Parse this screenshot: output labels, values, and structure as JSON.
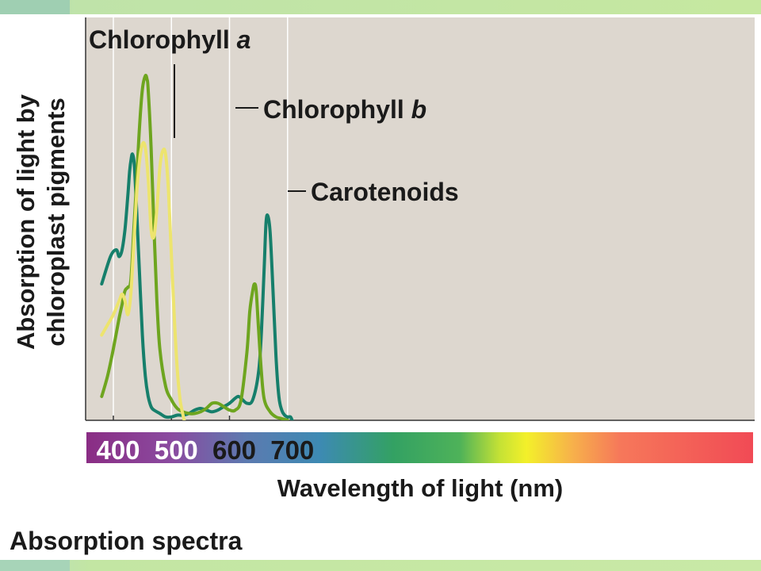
{
  "caption": "Absorption spectra",
  "colors": {
    "background": "#ddd7cf",
    "chlorophyll_a": "#167f6b",
    "chlorophyll_b": "#6ea51f",
    "carotenoids": "#ede46e",
    "grid": "#ffffff",
    "axis": "#333333"
  },
  "chart_data": {
    "type": "line",
    "title": "",
    "xlabel": "Wavelength of light (nm)",
    "ylabel_lines": [
      "Absorption of light by",
      "chloroplast pigments"
    ],
    "xlim": [
      353,
      1515
    ],
    "ylim": [
      0,
      100
    ],
    "xticks": [
      400,
      500,
      600,
      700
    ],
    "x_gridlines": [
      400,
      500,
      600,
      700
    ],
    "legend": "inline labels with leader lines",
    "series": [
      {
        "name": "Chlorophyll a",
        "key": "chlorophyll_a",
        "label_parts": [
          "Chlorophyll ",
          "a"
        ],
        "x": [
          380,
          395,
          405,
          410,
          415,
          420,
          425,
          428,
          431,
          433,
          436,
          440,
          445,
          450,
          455,
          460,
          465,
          470,
          480,
          490,
          500,
          510,
          520,
          530,
          540,
          550,
          560,
          570,
          580,
          590,
          600,
          610,
          615,
          620,
          630,
          640,
          650,
          655,
          660,
          663,
          666,
          670,
          675,
          680,
          685,
          690,
          695,
          700,
          705,
          708
        ],
        "y": [
          40,
          48,
          50,
          48,
          50,
          56,
          66,
          73,
          77,
          78,
          75,
          62,
          43,
          25,
          13,
          7,
          4,
          3,
          2,
          1,
          1,
          1.5,
          1.5,
          2,
          3,
          3.5,
          3,
          2.5,
          3,
          4,
          5,
          6.5,
          7,
          6.5,
          5,
          6,
          14,
          26,
          46,
          58,
          60,
          55,
          38,
          19,
          7,
          3,
          1.5,
          1,
          1,
          0
        ]
      },
      {
        "name": "Chlorophyll b",
        "key": "chlorophyll_b",
        "label_parts": [
          "Chlorophyll ",
          "b"
        ],
        "x": [
          380,
          390,
          400,
          410,
          415,
          420,
          425,
          430,
          435,
          440,
          445,
          450,
          455,
          458,
          460,
          465,
          470,
          475,
          480,
          490,
          500,
          510,
          520,
          530,
          540,
          550,
          560,
          570,
          580,
          590,
          600,
          610,
          620,
          630,
          635,
          640,
          643,
          646,
          650,
          655,
          660,
          670,
          680,
          690,
          700
        ],
        "y": [
          7,
          13,
          21,
          30,
          34,
          38,
          39,
          41,
          55,
          70,
          86,
          97,
          101,
          100,
          97,
          80,
          56,
          35,
          21,
          10,
          6,
          3.5,
          2.5,
          2,
          2,
          2.5,
          3.5,
          5,
          5,
          4,
          3,
          3,
          6,
          20,
          32,
          38,
          40,
          38,
          27,
          14,
          6,
          2.5,
          1,
          0.5,
          0
        ]
      },
      {
        "name": "Carotenoids",
        "key": "carotenoids",
        "label_parts": [
          "Carotenoids"
        ],
        "x": [
          380,
          390,
          400,
          410,
          415,
          420,
          425,
          430,
          435,
          440,
          445,
          450,
          455,
          460,
          465,
          470,
          475,
          480,
          485,
          490,
          495,
          500,
          505,
          510,
          515,
          520,
          522
        ],
        "y": [
          25,
          28,
          31,
          35,
          37,
          35,
          31,
          37,
          51,
          66,
          76,
          81,
          80,
          71,
          56,
          54,
          62,
          74,
          79,
          78,
          67,
          48,
          30,
          15,
          6,
          1.5,
          0
        ]
      }
    ]
  }
}
